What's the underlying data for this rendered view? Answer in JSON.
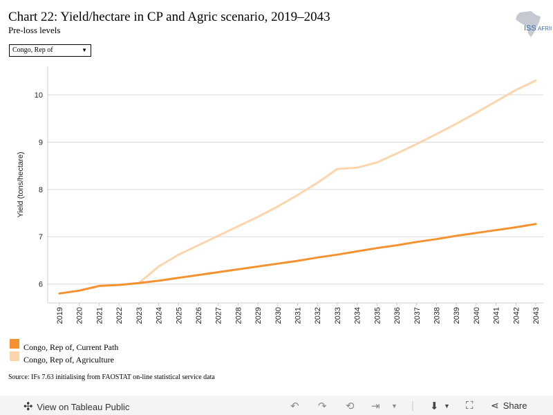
{
  "header": {
    "title": "Chart 22: Yield/hectare in CP and Agric scenario, 2019–2043",
    "subtitle": "Pre-loss levels",
    "logo_text": "ISS",
    "logo_text_2": "AFRICA"
  },
  "filter": {
    "selected": "Congo, Rep of"
  },
  "chart_data": {
    "type": "line",
    "title": "Chart 22: Yield/hectare in CP and Agric scenario, 2019–2043",
    "subtitle": "Pre-loss levels",
    "xlabel": "",
    "ylabel": "Yield (tons/hectare)",
    "x": [
      "2019",
      "2020",
      "2021",
      "2022",
      "2023",
      "2024",
      "2025",
      "2026",
      "2027",
      "2028",
      "2029",
      "2030",
      "2031",
      "2032",
      "2033",
      "2034",
      "2035",
      "2036",
      "2037",
      "2038",
      "2039",
      "2040",
      "2041",
      "2042",
      "2043"
    ],
    "yticks": [
      6,
      7,
      8,
      9,
      10
    ],
    "ylim": [
      5.6,
      10.6
    ],
    "grid": true,
    "series": [
      {
        "name": "Congo, Rep of, Current Path",
        "color": "#f5922f",
        "values": [
          5.8,
          5.86,
          5.96,
          5.98,
          6.02,
          6.07,
          6.13,
          6.19,
          6.25,
          6.31,
          6.37,
          6.43,
          6.49,
          6.56,
          6.62,
          6.69,
          6.76,
          6.82,
          6.89,
          6.95,
          7.02,
          7.08,
          7.14,
          7.2,
          7.27
        ]
      },
      {
        "name": "Congo, Rep of, Agriculture",
        "color": "#fcd5ad",
        "values": [
          5.8,
          5.86,
          5.96,
          5.98,
          6.02,
          6.37,
          6.62,
          6.82,
          7.02,
          7.22,
          7.42,
          7.64,
          7.88,
          8.14,
          8.43,
          8.46,
          8.57,
          8.76,
          8.96,
          9.17,
          9.39,
          9.62,
          9.86,
          10.1,
          10.3
        ]
      }
    ]
  },
  "legend": [
    {
      "label": "Congo, Rep of, Current Path",
      "color": "#f5922f"
    },
    {
      "label": "Congo, Rep of, Agriculture",
      "color": "#fcd5ad"
    }
  ],
  "source": "Source: IFs 7.63 initialising from FAOSTAT on-line statistical service data",
  "footer": {
    "view_label": "View on Tableau Public",
    "share_label": "Share"
  }
}
